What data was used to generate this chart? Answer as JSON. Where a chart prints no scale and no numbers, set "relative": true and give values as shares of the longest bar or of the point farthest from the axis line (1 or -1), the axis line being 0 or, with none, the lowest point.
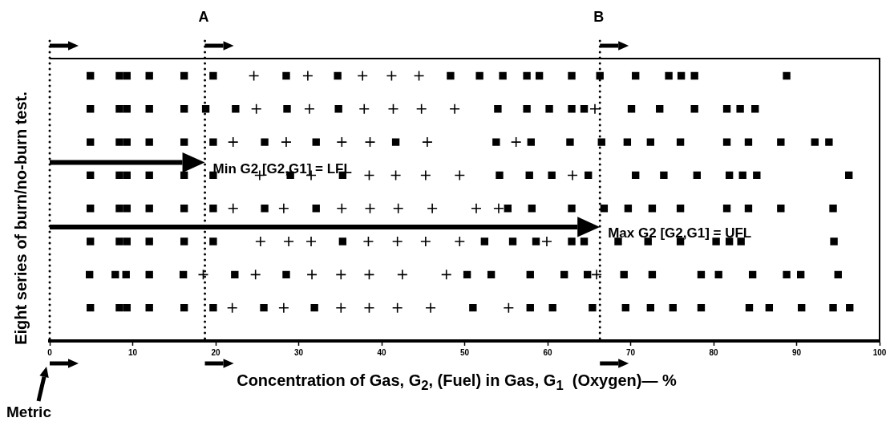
{
  "chart_data": {
    "type": "scatter",
    "relative": true,
    "xlabel": "Concentration of Gas, G$_{2}$, (Fuel) in Gas, G$_{1}$  (Oxygen)— %",
    "ylabel": "Eight series of burn/no-burn test.",
    "series": [
      {
        "color": "#000000",
        "marker": "cross",
        "x": [
          24.6,
          31.1,
          37.7,
          41.2,
          44.5,
          24.9,
          31.3,
          37.9,
          41.4,
          44.8,
          48.8,
          65.7,
          22.1,
          28.5,
          35.2,
          38.6,
          45.5,
          56.2,
          25.3,
          31.5,
          38.5,
          41.7,
          45.3,
          49.4,
          63.0,
          22.1,
          28.2,
          35.2,
          38.6,
          42.0,
          46.1,
          51.4,
          54.1,
          25.4,
          28.8,
          31.5,
          38.4,
          41.9,
          45.3,
          49.4,
          59.9,
          18.5,
          24.8,
          31.6,
          35.1,
          38.5,
          42.5,
          47.8,
          65.9,
          22.0,
          28.2,
          35.1,
          38.5,
          41.9,
          45.9,
          55.3
        ],
        "values": [
          1,
          1,
          1,
          1,
          1,
          0.875,
          0.875,
          0.875,
          0.875,
          0.875,
          0.875,
          0.875,
          0.75,
          0.75,
          0.75,
          0.75,
          0.75,
          0.75,
          0.625,
          0.625,
          0.625,
          0.625,
          0.625,
          0.625,
          0.625,
          0.5,
          0.5,
          0.5,
          0.5,
          0.5,
          0.5,
          0.5,
          0.5,
          0.375,
          0.375,
          0.375,
          0.375,
          0.375,
          0.375,
          0.375,
          0.375,
          0.25,
          0.25,
          0.25,
          0.25,
          0.25,
          0.25,
          0.25,
          0.25,
          0.125,
          0.125,
          0.125,
          0.125,
          0.125,
          0.125,
          0.125
        ]
      },
      {
        "color": "#000000",
        "x": [
          4.9,
          8.4,
          9.3,
          12.0,
          16.2,
          19.7,
          28.5,
          34.7,
          48.3,
          51.8,
          54.6,
          57.5,
          59.0,
          62.9,
          66.3,
          70.6,
          74.6,
          76.1,
          77.7,
          88.8,
          4.9,
          8.4,
          9.3,
          12.0,
          16.2,
          18.8,
          22.4,
          28.6,
          34.8,
          54.0,
          57.5,
          60.2,
          62.9,
          64.4,
          70.1,
          73.5,
          77.7,
          81.6,
          83.2,
          85.0,
          4.9,
          8.4,
          9.3,
          12.0,
          16.2,
          19.7,
          25.9,
          32.1,
          41.7,
          53.8,
          58.0,
          62.7,
          66.5,
          69.6,
          72.4,
          76.0,
          81.6,
          84.2,
          88.1,
          92.2,
          93.9,
          4.9,
          8.4,
          9.3,
          12.0,
          16.2,
          19.7,
          29.0,
          35.3,
          54.2,
          57.8,
          60.5,
          64.9,
          70.6,
          74.0,
          78.0,
          81.9,
          83.5,
          85.2,
          96.3,
          4.9,
          8.4,
          9.3,
          12.0,
          16.2,
          19.7,
          25.9,
          32.1,
          55.2,
          58.1,
          62.9,
          66.8,
          69.7,
          72.6,
          76.0,
          81.6,
          84.2,
          88.1,
          94.4,
          4.9,
          8.4,
          9.3,
          12.0,
          16.2,
          19.7,
          35.3,
          52.4,
          55.8,
          58.6,
          62.9,
          64.4,
          68.5,
          72.1,
          76.0,
          80.3,
          81.9,
          83.3,
          94.5,
          4.8,
          7.9,
          9.2,
          12.0,
          16.1,
          22.3,
          28.5,
          50.3,
          53.2,
          57.9,
          62.0,
          64.8,
          69.2,
          72.6,
          78.5,
          80.6,
          84.7,
          88.8,
          90.5,
          95.0,
          4.9,
          8.4,
          9.3,
          12.0,
          16.2,
          19.7,
          25.8,
          31.9,
          51.0,
          57.9,
          60.6,
          65.4,
          69.4,
          72.4,
          75.1,
          78.5,
          84.3,
          86.7,
          90.6,
          94.4,
          96.4
        ],
        "values": [
          1,
          1,
          1,
          1,
          1,
          1,
          1,
          1,
          1,
          1,
          1,
          1,
          1,
          1,
          1,
          1,
          1,
          1,
          1,
          1,
          0.875,
          0.875,
          0.875,
          0.875,
          0.875,
          0.875,
          0.875,
          0.875,
          0.875,
          0.875,
          0.875,
          0.875,
          0.875,
          0.875,
          0.875,
          0.875,
          0.875,
          0.875,
          0.875,
          0.875,
          0.75,
          0.75,
          0.75,
          0.75,
          0.75,
          0.75,
          0.75,
          0.75,
          0.75,
          0.75,
          0.75,
          0.75,
          0.75,
          0.75,
          0.75,
          0.75,
          0.75,
          0.75,
          0.75,
          0.75,
          0.75,
          0.625,
          0.625,
          0.625,
          0.625,
          0.625,
          0.625,
          0.625,
          0.625,
          0.625,
          0.625,
          0.625,
          0.625,
          0.625,
          0.625,
          0.625,
          0.625,
          0.625,
          0.625,
          0.625,
          0.5,
          0.5,
          0.5,
          0.5,
          0.5,
          0.5,
          0.5,
          0.5,
          0.5,
          0.5,
          0.5,
          0.5,
          0.5,
          0.5,
          0.5,
          0.5,
          0.5,
          0.5,
          0.5,
          0.375,
          0.375,
          0.375,
          0.375,
          0.375,
          0.375,
          0.375,
          0.375,
          0.375,
          0.375,
          0.375,
          0.375,
          0.375,
          0.375,
          0.375,
          0.375,
          0.375,
          0.375,
          0.375,
          0.25,
          0.25,
          0.25,
          0.25,
          0.25,
          0.25,
          0.25,
          0.25,
          0.25,
          0.25,
          0.25,
          0.25,
          0.25,
          0.25,
          0.25,
          0.25,
          0.25,
          0.25,
          0.25,
          0.25,
          0.125,
          0.125,
          0.125,
          0.125,
          0.125,
          0.125,
          0.125,
          0.125,
          0.125,
          0.125,
          0.125,
          0.125,
          0.125,
          0.125,
          0.125,
          0.125,
          0.125,
          0.125,
          0.125,
          0.125,
          0.125
        ]
      }
    ],
    "xlim": [
      0,
      100
    ],
    "xticks": [
      0,
      10,
      20,
      30,
      40,
      50,
      60,
      70,
      80,
      90,
      100
    ],
    "ref_lines": [
      {
        "axis": "x",
        "value": 0,
        "label": null,
        "line_style": "dotted",
        "color": "#000000"
      },
      {
        "axis": "x",
        "value": 18.7,
        "label": "A",
        "line_style": "dotted",
        "color": "#000000"
      },
      {
        "axis": "x",
        "value": 66.3,
        "label": "B",
        "line_style": "dotted",
        "color": "#000000"
      }
    ],
    "annotations": [
      {
        "text": "Min G2 [G2,G1] = LFL",
        "x": 18.7,
        "y": 0.673
      },
      {
        "text": "Max G2 [G2,G1] = UFL",
        "x": 66.3,
        "y": 0.43
      },
      "Metric"
    ],
    "legend": false
  }
}
